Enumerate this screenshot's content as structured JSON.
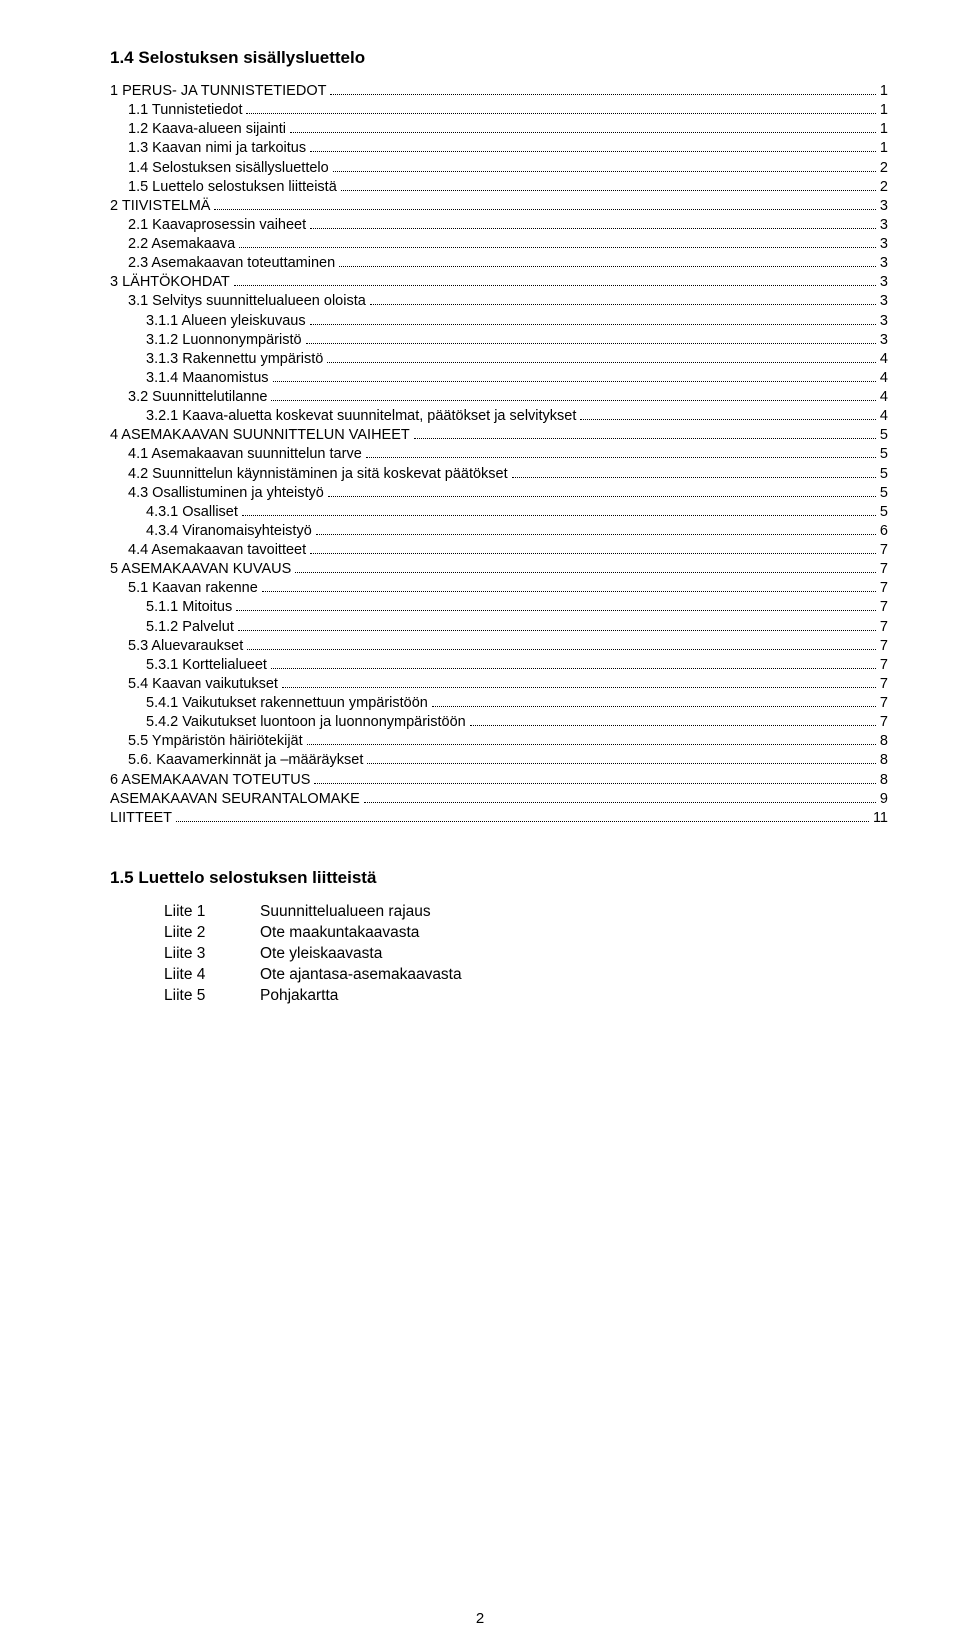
{
  "colors": {
    "text": "#000000",
    "background": "#ffffff",
    "leader": "#000000"
  },
  "typography": {
    "body_family": "Arial, Helvetica, sans-serif",
    "heading_size_pt": 13,
    "body_size_pt": 11,
    "appendix_size_pt": 11.5,
    "line_height": 1.32
  },
  "heading": "1.4 Selostuksen sisällysluettelo",
  "toc": [
    {
      "label": "1 PERUS- JA TUNNISTETIEDOT",
      "page": "1",
      "indent": 0
    },
    {
      "label": "1.1 Tunnistetiedot",
      "page": "1",
      "indent": 1
    },
    {
      "label": "1.2 Kaava-alueen sijainti",
      "page": "1",
      "indent": 1
    },
    {
      "label": "1.3 Kaavan nimi ja tarkoitus",
      "page": "1",
      "indent": 1
    },
    {
      "label": "1.4 Selostuksen sisällysluettelo",
      "page": "2",
      "indent": 1
    },
    {
      "label": "1.5 Luettelo selostuksen liitteistä",
      "page": "2",
      "indent": 1
    },
    {
      "label": "2 TIIVISTELMÄ",
      "page": "3",
      "indent": 0
    },
    {
      "label": "2.1 Kaavaprosessin vaiheet",
      "page": "3",
      "indent": 1
    },
    {
      "label": "2.2 Asemakaava",
      "page": "3",
      "indent": 1
    },
    {
      "label": "2.3 Asemakaavan toteuttaminen",
      "page": "3",
      "indent": 1
    },
    {
      "label": "3 LÄHTÖKOHDAT",
      "page": "3",
      "indent": 0
    },
    {
      "label": "3.1 Selvitys suunnittelualueen oloista",
      "page": "3",
      "indent": 1
    },
    {
      "label": "3.1.1 Alueen yleiskuvaus",
      "page": "3",
      "indent": 2
    },
    {
      "label": "3.1.2 Luonnonympäristö",
      "page": "3",
      "indent": 2
    },
    {
      "label": "3.1.3 Rakennettu ympäristö",
      "page": "4",
      "indent": 2
    },
    {
      "label": "3.1.4 Maanomistus",
      "page": "4",
      "indent": 2
    },
    {
      "label": "3.2 Suunnittelutilanne",
      "page": "4",
      "indent": 1
    },
    {
      "label": "3.2.1 Kaava-aluetta koskevat suunnitelmat, päätökset ja selvitykset",
      "page": "4",
      "indent": 2
    },
    {
      "label": "4 ASEMAKAAVAN SUUNNITTELUN VAIHEET",
      "page": "5",
      "indent": 0
    },
    {
      "label": "4.1 Asemakaavan suunnittelun tarve",
      "page": "5",
      "indent": 1
    },
    {
      "label": "4.2 Suunnittelun käynnistäminen ja sitä koskevat päätökset",
      "page": "5",
      "indent": 1
    },
    {
      "label": "4.3 Osallistuminen ja yhteistyö",
      "page": "5",
      "indent": 1
    },
    {
      "label": "4.3.1 Osalliset",
      "page": "5",
      "indent": 2
    },
    {
      "label": "4.3.4 Viranomaisyhteistyö",
      "page": "6",
      "indent": 2
    },
    {
      "label": "4.4 Asemakaavan tavoitteet",
      "page": "7",
      "indent": 1
    },
    {
      "label": "5 ASEMAKAAVAN KUVAUS",
      "page": "7",
      "indent": 0
    },
    {
      "label": "5.1 Kaavan rakenne",
      "page": "7",
      "indent": 1
    },
    {
      "label": "5.1.1 Mitoitus",
      "page": "7",
      "indent": 2
    },
    {
      "label": "5.1.2 Palvelut",
      "page": "7",
      "indent": 2
    },
    {
      "label": "5.3 Aluevaraukset",
      "page": "7",
      "indent": 1
    },
    {
      "label": "5.3.1 Korttelialueet",
      "page": "7",
      "indent": 2
    },
    {
      "label": "5.4 Kaavan vaikutukset",
      "page": "7",
      "indent": 1
    },
    {
      "label": "5.4.1 Vaikutukset rakennettuun ympäristöön",
      "page": "7",
      "indent": 2
    },
    {
      "label": "5.4.2 Vaikutukset luontoon ja luonnonympäristöön",
      "page": "7",
      "indent": 2
    },
    {
      "label": "5.5 Ympäristön häiriötekijät",
      "page": "8",
      "indent": 1
    },
    {
      "label": "5.6. Kaavamerkinnät ja –määräykset",
      "page": "8",
      "indent": 1
    },
    {
      "label": "6 ASEMAKAAVAN TOTEUTUS",
      "page": "8",
      "indent": 0
    },
    {
      "label": "ASEMAKAAVAN SEURANTALOMAKE",
      "page": "9",
      "indent": 0
    },
    {
      "label": "LIITTEET",
      "page": "11",
      "indent": 0
    }
  ],
  "section_heading": "1.5 Luettelo selostuksen liitteistä",
  "appendices": [
    {
      "label": "Liite 1",
      "desc": "Suunnittelualueen rajaus"
    },
    {
      "label": "Liite 2",
      "desc": "Ote maakuntakaavasta"
    },
    {
      "label": "Liite 3",
      "desc": "Ote yleiskaavasta"
    },
    {
      "label": "Liite 4",
      "desc": "Ote ajantasa-asemakaavasta"
    },
    {
      "label": "Liite 5",
      "desc": "Pohjakartta"
    }
  ],
  "page_number": "2"
}
